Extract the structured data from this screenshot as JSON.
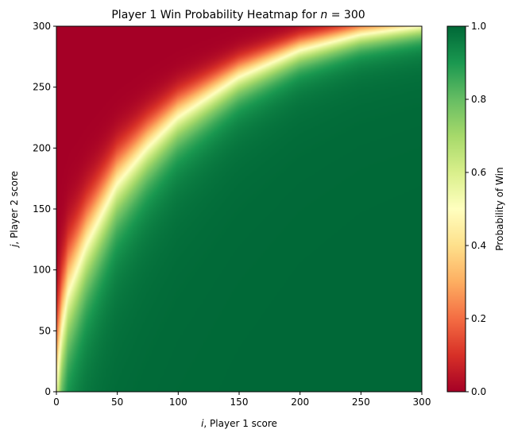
{
  "chart_data": {
    "type": "heatmap",
    "title": "Player 1 Win Probability Heatmap for n = 300",
    "title_prefix": "Player 1 Win Probability Heatmap for ",
    "title_math_var": "n",
    "title_math_rest": " = 300",
    "xlabel_var": "i",
    "xlabel_rest": ", Player 1 score",
    "ylabel_var": "j",
    "ylabel_rest": ", Player 2 score",
    "xlim": [
      0,
      300
    ],
    "ylim": [
      0,
      300
    ],
    "x_ticks": [
      0,
      50,
      100,
      150,
      200,
      250,
      300
    ],
    "y_ticks": [
      0,
      50,
      100,
      150,
      200,
      250,
      300
    ],
    "colorbar": {
      "label": "Probability of Win",
      "range": [
        0,
        1
      ],
      "ticks": [
        "0.0",
        "0.2",
        "0.4",
        "0.6",
        "0.8",
        "1.0"
      ],
      "colormap": "RdYlGn"
    },
    "surface": {
      "description_of_values": "value at (i, j) equals P(win); the p=0.5 contour passes approximately through these (i, j) points",
      "contour_p50": [
        [
          0,
          0
        ],
        [
          5,
          50
        ],
        [
          10,
          80
        ],
        [
          25,
          120
        ],
        [
          50,
          170
        ],
        [
          75,
          200
        ],
        [
          100,
          225
        ],
        [
          150,
          258
        ],
        [
          200,
          280
        ],
        [
          250,
          293
        ],
        [
          300,
          300
        ]
      ]
    }
  }
}
